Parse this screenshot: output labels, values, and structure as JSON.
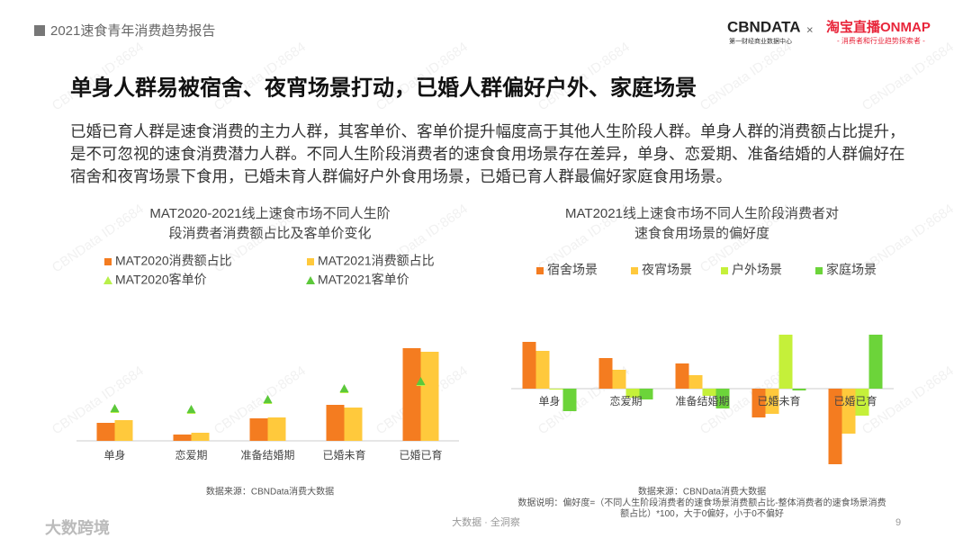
{
  "header": {
    "report": "2021速食青年消费趋势报告",
    "logo1": "CBNDATA",
    "logo1_sub": "第一财经商业数据中心",
    "times": "×",
    "logo2": "淘宝直播ONMAP",
    "logo2_sub": "- 消费者和行业趋势探索者 -"
  },
  "title": "单身人群易被宿舍、夜宵场景打动，已婚人群偏好户外、家庭场景",
  "body": "已婚已育人群是速食消费的主力人群，其客单价、客单价提升幅度高于其他人生阶段人群。单身人群的消费额占比提升，是不可忽视的速食消费潜力人群。不同人生阶段消费者的速食食用场景存在差异，单身、恋爱期、准备结婚的人群偏好在宿舍和夜宵场景下食用，已婚未育人群偏好户外食用场景，已婚已育人群最偏好家庭食用场景。",
  "watermark": "CBNData ID:8684",
  "footer": {
    "center": "大数据 · 全洞察",
    "page": "9",
    "brand": "大数跨境"
  },
  "chart_data": [
    {
      "type": "bar",
      "title": "MAT2020-2021线上速食市场不同人生阶段消费者消费额占比及客单价变化",
      "categories": [
        "单身",
        "恋爱期",
        "准备结婚期",
        "已婚未育",
        "已婚已育"
      ],
      "series": [
        {
          "name": "MAT2020消费额占比",
          "color": "#f47c20",
          "marker": "bar",
          "values": [
            20,
            7,
            25,
            40,
            103
          ]
        },
        {
          "name": "MAT2021消费额占比",
          "color": "#ffc93c",
          "marker": "bar",
          "values": [
            23,
            9,
            26,
            37,
            99
          ]
        },
        {
          "name": "MAT2020客单价",
          "color": "#b8f04a",
          "marker": "triangle",
          "values": [
            34,
            33,
            44,
            56,
            64
          ]
        },
        {
          "name": "MAT2021客单价",
          "color": "#5cc83a",
          "marker": "triangle",
          "values": [
            35,
            34,
            45,
            57,
            65
          ]
        }
      ],
      "ylim": [
        0,
        110
      ],
      "source": "数据来源：CBNData消费大数据"
    },
    {
      "type": "bar",
      "title": "MAT2021线上速食市场不同人生阶段消费者对速食食用场景的偏好度",
      "categories": [
        "单身",
        "恋爱期",
        "准备结婚期",
        "已婚未育",
        "已婚已育"
      ],
      "series": [
        {
          "name": "宿舍场景",
          "color": "#f47c20",
          "values": [
            52,
            34,
            28,
            -32,
            -84
          ]
        },
        {
          "name": "夜宵场景",
          "color": "#ffc93c",
          "values": [
            42,
            21,
            15,
            -28,
            -50
          ]
        },
        {
          "name": "户外场景",
          "color": "#c5f03a",
          "values": [
            -1,
            -10,
            -8,
            60,
            -30
          ]
        },
        {
          "name": "家庭场景",
          "color": "#6cd43a",
          "values": [
            -25,
            -12,
            -22,
            -2,
            60
          ]
        }
      ],
      "ylim": [
        -90,
        80
      ],
      "source": "数据来源：CBNData消费大数据",
      "note": "数据说明：偏好度=（不同人生阶段消费者的速食场景消费额占比-整体消费者的速食场景消费额占比）*100，大于0偏好，小于0不偏好"
    }
  ]
}
